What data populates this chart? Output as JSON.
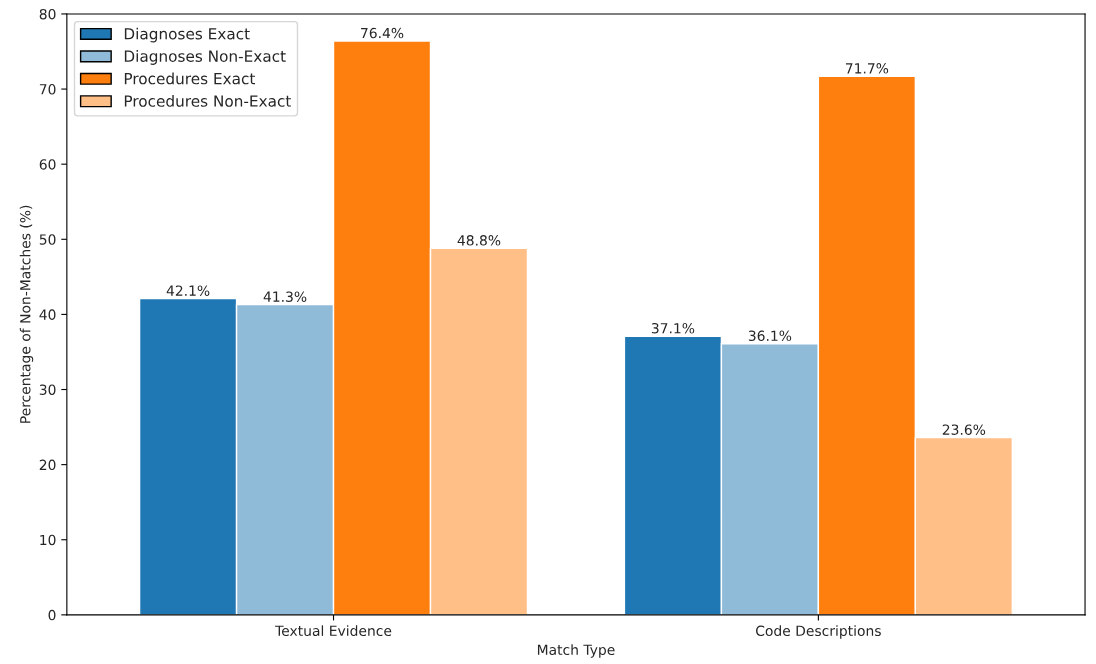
{
  "chart_data": {
    "type": "bar",
    "xlabel": "Match Type",
    "ylabel": "Percentage of Non-Matches (%)",
    "categories": [
      "Textual Evidence",
      "Code Descriptions"
    ],
    "series": [
      {
        "name": "Diagnoses Exact",
        "color": "#1f77b4",
        "values": [
          42.1,
          37.1
        ],
        "value_labels": [
          "42.1%",
          "37.1%"
        ]
      },
      {
        "name": "Diagnoses Non-Exact",
        "color": "#8fbbd9",
        "values": [
          41.3,
          36.1
        ],
        "value_labels": [
          "41.3%",
          "36.1%"
        ]
      },
      {
        "name": "Procedures Exact",
        "color": "#ff7f0e",
        "values": [
          76.4,
          71.7
        ],
        "value_labels": [
          "76.4%",
          "71.7%"
        ]
      },
      {
        "name": "Procedures Non-Exact",
        "color": "#ffbf86",
        "values": [
          48.8,
          23.6
        ],
        "value_labels": [
          "48.8%",
          "23.6%"
        ]
      }
    ],
    "ylim": [
      0,
      80
    ],
    "yticks": [
      0,
      10,
      20,
      30,
      40,
      50,
      60,
      70,
      80
    ],
    "grid": false,
    "legend": "top left"
  }
}
